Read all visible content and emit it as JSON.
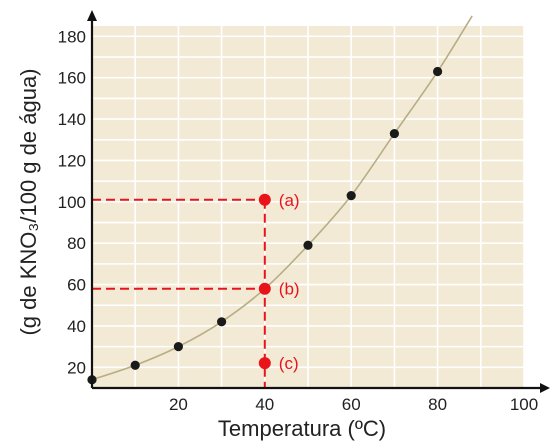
{
  "colors": {
    "plot_background": "#f3ead6",
    "grid": "#ffffff",
    "curve": "#b8ad84",
    "data_point": "#1a1a1a",
    "highlight": "#e8141a",
    "axis": "#111111"
  },
  "chart_data": {
    "type": "scatter",
    "title": "",
    "xlabel": "Temperatura (ºC)",
    "ylabel": "(g de KNO₃/100 g de água)",
    "xlim": [
      0,
      100
    ],
    "ylim": [
      10,
      185
    ],
    "x_ticks": [
      {
        "value": 20,
        "label": "20"
      },
      {
        "value": 40,
        "label": "40"
      },
      {
        "value": 60,
        "label": "60"
      },
      {
        "value": 80,
        "label": "80"
      },
      {
        "value": 100,
        "label": "100"
      }
    ],
    "y_ticks": [
      {
        "value": 20,
        "label": "20"
      },
      {
        "value": 40,
        "label": "40"
      },
      {
        "value": 60,
        "label": "60"
      },
      {
        "value": 80,
        "label": "80"
      },
      {
        "value": 100,
        "label": "100"
      },
      {
        "value": 120,
        "label": "120"
      },
      {
        "value": 140,
        "label": "140"
      },
      {
        "value": 160,
        "label": "160"
      },
      {
        "value": 180,
        "label": "180"
      }
    ],
    "grid": true,
    "x_grid_step": 10,
    "y_grid_step": 10,
    "series": [
      {
        "x": [
          0,
          10,
          20,
          30,
          40,
          50,
          60,
          70,
          80
        ],
        "y": [
          14,
          21,
          30,
          42,
          58,
          79,
          103,
          133,
          163
        ]
      }
    ],
    "curve_extent": [
      0,
      88
    ],
    "highlight_points": [
      {
        "x": 40,
        "y": 101,
        "label": "(a)",
        "guide_to_y_axis": true
      },
      {
        "x": 40,
        "y": 58,
        "label": "(b)",
        "guide_to_y_axis": true
      },
      {
        "x": 40,
        "y": 22,
        "label": "(c)",
        "guide_to_y_axis": false
      }
    ]
  }
}
